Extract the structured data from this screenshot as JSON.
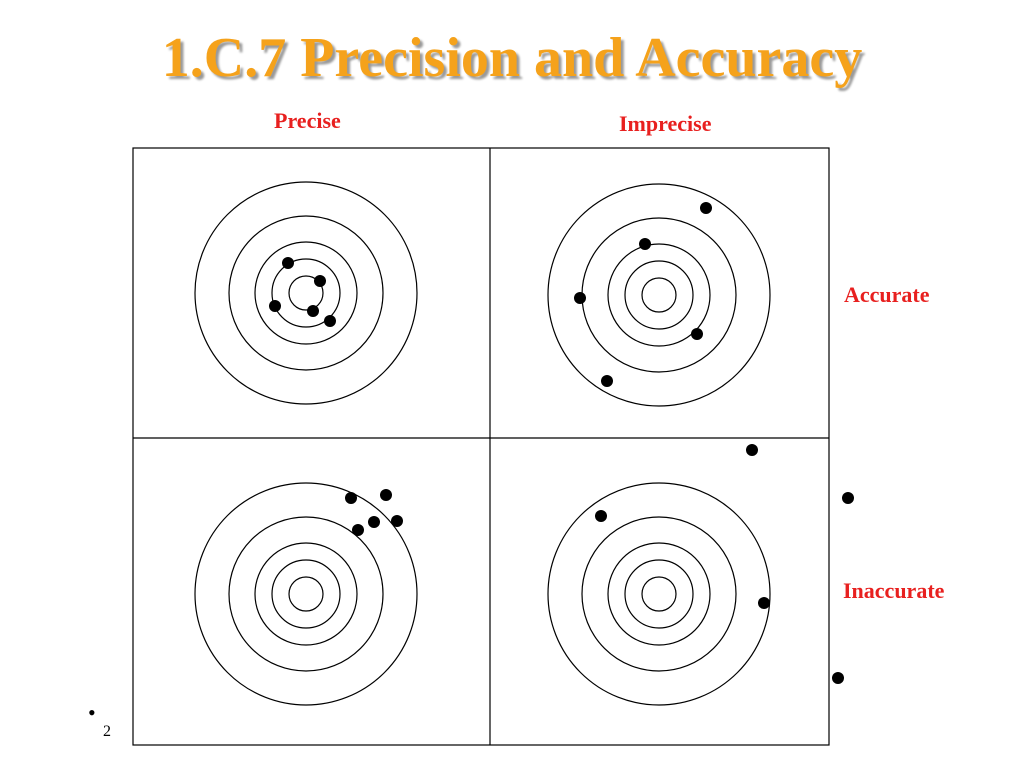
{
  "slide": {
    "title": "1.C.7 Precision and Accuracy",
    "column_labels": {
      "precise": "Precise",
      "imprecise": "Imprecise"
    },
    "row_labels": {
      "accurate": "Accurate",
      "inaccurate": "Inaccurate"
    },
    "bullet": "•",
    "page_number": "2"
  },
  "colors": {
    "title": "#f5a21b",
    "labels": "#e8201f",
    "lines": "#000000"
  }
}
